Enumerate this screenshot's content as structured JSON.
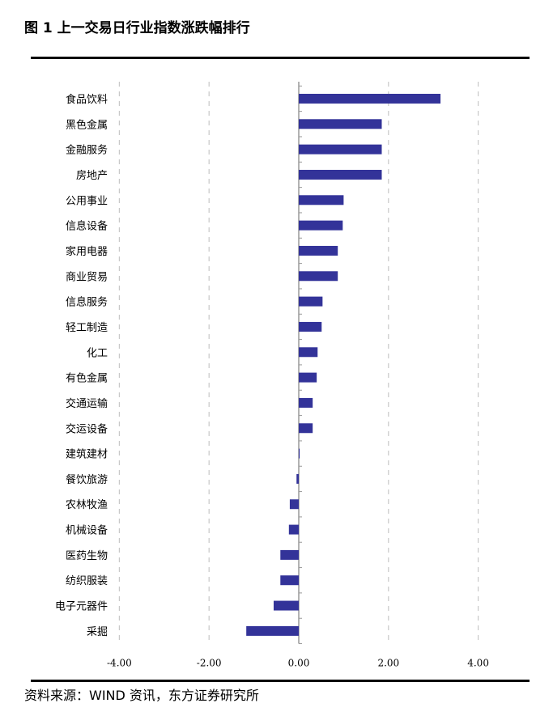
{
  "title": "图 1  上一交易日行业指数涨跌幅排行",
  "source": "资料来源：WIND 资讯，东方证券研究所",
  "chart_data": {
    "type": "bar",
    "orientation": "horizontal",
    "title": "",
    "xlabel": "",
    "ylabel": "",
    "xlim": [
      -4,
      4
    ],
    "x_ticks": [
      "-4.00",
      "-2.00",
      "0.00",
      "2.00",
      "4.00"
    ],
    "x_tick_values": [
      -4,
      -2,
      0,
      2,
      4
    ],
    "grid": "vertical dashed",
    "legend": "none",
    "bar_color": "#333399",
    "categories": [
      "食品饮料",
      "黑色金属",
      "金融服务",
      "房地产",
      "公用事业",
      "信息设备",
      "家用电器",
      "商业贸易",
      "信息服务",
      "轻工制造",
      "化工",
      "有色金属",
      "交通运输",
      "交运设备",
      "建筑建材",
      "餐饮旅游",
      "农林牧渔",
      "机械设备",
      "医药生物",
      "纺织服装",
      "电子元器件",
      "采掘"
    ],
    "values": [
      3.16,
      1.85,
      1.85,
      1.85,
      1.0,
      0.98,
      0.87,
      0.87,
      0.53,
      0.51,
      0.42,
      0.4,
      0.31,
      0.31,
      0.02,
      -0.05,
      -0.2,
      -0.22,
      -0.41,
      -0.41,
      -0.56,
      -1.17
    ]
  }
}
